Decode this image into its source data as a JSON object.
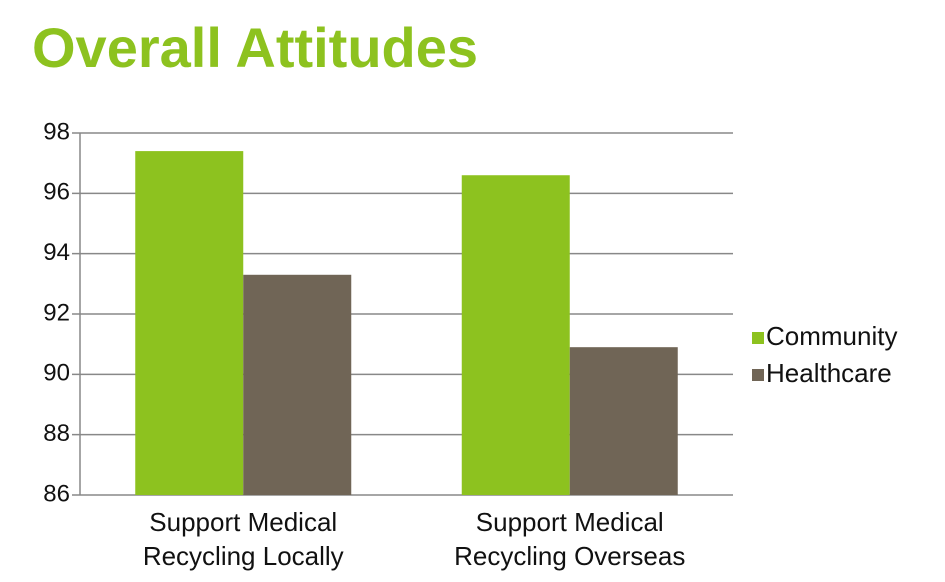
{
  "chart_data": {
    "type": "bar",
    "title": "Overall Attitudes",
    "categories": [
      "Support Medical Recycling Locally",
      "Support Medical Recycling Overseas"
    ],
    "series": [
      {
        "name": "Community",
        "color": "#8dc21f",
        "values": [
          97.4,
          96.6
        ]
      },
      {
        "name": "Healthcare",
        "color": "#706556",
        "values": [
          93.3,
          90.9
        ]
      }
    ],
    "ylim": [
      86,
      98
    ],
    "yticks": [
      86,
      88,
      90,
      92,
      94,
      96,
      98
    ],
    "grid": true,
    "legend": "right"
  }
}
